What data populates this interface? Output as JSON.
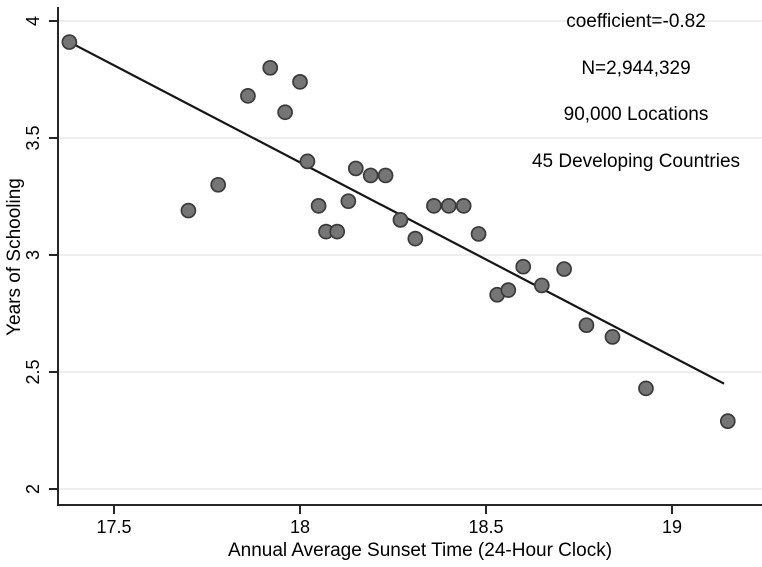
{
  "chart_data": {
    "type": "scatter",
    "title": "",
    "xlabel": "Annual Average Sunset Time (24-Hour Clock)",
    "ylabel": "Years of Schooling",
    "xlim": [
      17.35,
      19.24
    ],
    "ylim": [
      1.93,
      4.06
    ],
    "xticks": [
      17.5,
      18,
      18.5,
      19
    ],
    "yticks": [
      2,
      2.5,
      3,
      3.5,
      4
    ],
    "grid": "horizontal-only",
    "legend": "none",
    "annotations": [
      "coefficient=-0.82",
      "N=2,944,329",
      "90,000 Locations",
      "45 Developing Countries"
    ],
    "series": [
      {
        "name": "binned-scatter-points",
        "points": [
          [
            17.38,
            3.91
          ],
          [
            17.7,
            3.19
          ],
          [
            17.78,
            3.3
          ],
          [
            17.86,
            3.68
          ],
          [
            17.92,
            3.8
          ],
          [
            17.96,
            3.61
          ],
          [
            18.0,
            3.74
          ],
          [
            18.02,
            3.4
          ],
          [
            18.05,
            3.21
          ],
          [
            18.07,
            3.1
          ],
          [
            18.1,
            3.1
          ],
          [
            18.13,
            3.23
          ],
          [
            18.15,
            3.37
          ],
          [
            18.19,
            3.34
          ],
          [
            18.23,
            3.34
          ],
          [
            18.27,
            3.15
          ],
          [
            18.31,
            3.07
          ],
          [
            18.36,
            3.21
          ],
          [
            18.4,
            3.21
          ],
          [
            18.44,
            3.21
          ],
          [
            18.48,
            3.09
          ],
          [
            18.53,
            2.83
          ],
          [
            18.56,
            2.85
          ],
          [
            18.6,
            2.95
          ],
          [
            18.65,
            2.87
          ],
          [
            18.71,
            2.94
          ],
          [
            18.77,
            2.7
          ],
          [
            18.84,
            2.65
          ],
          [
            18.93,
            2.43
          ],
          [
            19.15,
            2.29
          ]
        ]
      }
    ],
    "fit_line": {
      "x": [
        17.38,
        19.14
      ],
      "y": [
        3.91,
        2.45
      ],
      "slope": -0.82
    },
    "colors": {
      "marker_fill": "#757575",
      "marker_stroke": "#3a3a3a",
      "fit_line": "#161616",
      "grid": "#e8e8e8",
      "axis": "#262626",
      "text": "#000000",
      "background": "#ffffff"
    }
  }
}
